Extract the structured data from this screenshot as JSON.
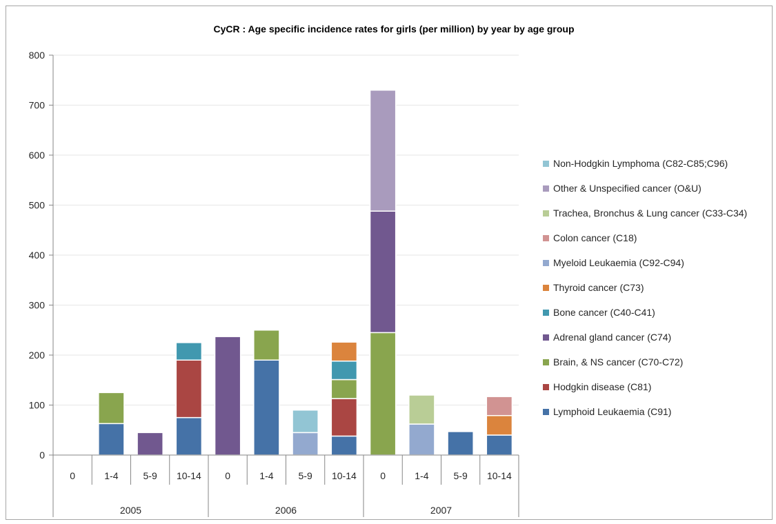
{
  "chart_data": {
    "type": "bar",
    "stacked": true,
    "title": "CyCR :   Age specific incidence rates for girls (per million) by year by age group",
    "xlabel": "",
    "ylabel": "",
    "ylim": [
      0,
      800
    ],
    "yticks": [
      0,
      100,
      200,
      300,
      400,
      500,
      600,
      700,
      800
    ],
    "grid": true,
    "legend_position": "right",
    "groups": [
      {
        "label": "2005",
        "categories": [
          "0",
          "1-4",
          "5-9",
          "10-14"
        ]
      },
      {
        "label": "2006",
        "categories": [
          "0",
          "1-4",
          "5-9",
          "10-14"
        ]
      },
      {
        "label": "2007",
        "categories": [
          "0",
          "1-4",
          "5-9",
          "10-14"
        ]
      }
    ],
    "series": [
      {
        "name": "Lymphoid Leukaemia (C91)",
        "color": "#4572a7",
        "values": [
          0,
          63,
          0,
          75,
          0,
          190,
          0,
          38,
          0,
          0,
          47,
          40
        ]
      },
      {
        "name": "Hodgkin disease (C81)",
        "color": "#aa4643",
        "values": [
          0,
          0,
          0,
          115,
          0,
          0,
          0,
          75,
          0,
          0,
          0,
          0
        ]
      },
      {
        "name": "Brain, & NS cancer (C70-C72)",
        "color": "#89a54e",
        "values": [
          0,
          62,
          0,
          0,
          0,
          60,
          0,
          38,
          245,
          0,
          0,
          0
        ]
      },
      {
        "name": "Adrenal gland cancer (C74)",
        "color": "#71588f",
        "values": [
          0,
          0,
          45,
          0,
          237,
          0,
          0,
          0,
          243,
          0,
          0,
          0
        ]
      },
      {
        "name": "Bone cancer (C40-C41)",
        "color": "#4198af",
        "values": [
          0,
          0,
          0,
          35,
          0,
          0,
          0,
          37,
          0,
          0,
          0,
          0
        ]
      },
      {
        "name": "Thyroid cancer (C73)",
        "color": "#db843d",
        "values": [
          0,
          0,
          0,
          0,
          0,
          0,
          0,
          38,
          0,
          0,
          0,
          39
        ]
      },
      {
        "name": "Myeloid Leukaemia (C92-C94)",
        "color": "#93a9cf",
        "values": [
          0,
          0,
          0,
          0,
          0,
          0,
          45,
          0,
          0,
          62,
          0,
          0
        ]
      },
      {
        "name": "Colon cancer (C18)",
        "color": "#d19392",
        "values": [
          0,
          0,
          0,
          0,
          0,
          0,
          0,
          0,
          0,
          0,
          0,
          38
        ]
      },
      {
        "name": "Trachea, Bronchus & Lung cancer (C33-C34)",
        "color": "#b9cd96",
        "values": [
          0,
          0,
          0,
          0,
          0,
          0,
          0,
          0,
          0,
          58,
          0,
          0
        ]
      },
      {
        "name": "Other & Unspecified cancer (O&U)",
        "color": "#a99bbd",
        "values": [
          0,
          0,
          0,
          0,
          0,
          0,
          0,
          0,
          242,
          0,
          0,
          0
        ]
      },
      {
        "name": "Non-Hodgkin Lymphoma (C82-C85;C96)",
        "color": "#92c5d4",
        "values": [
          0,
          0,
          0,
          0,
          0,
          0,
          45,
          0,
          0,
          0,
          0,
          0
        ]
      }
    ]
  }
}
